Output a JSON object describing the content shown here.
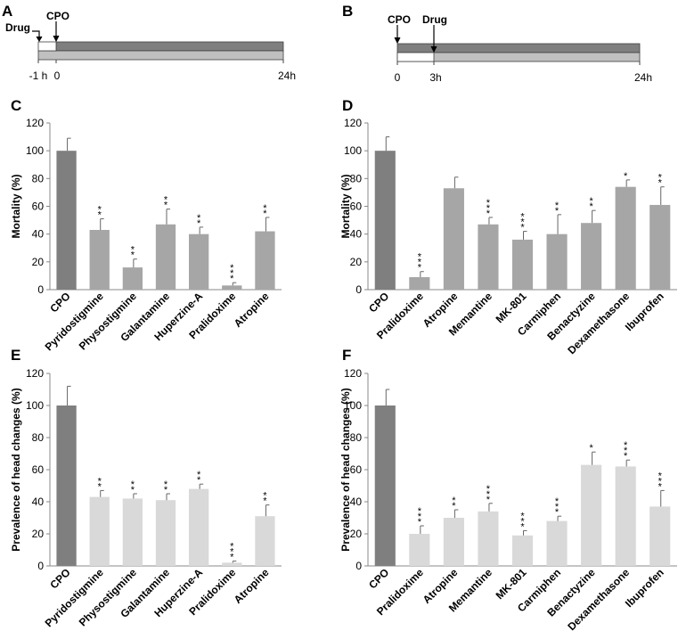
{
  "colors": {
    "cpo_bar": "#7f7f7f",
    "mortality_bar": "#a6a6a6",
    "head_bar": "#d9d9d9",
    "axis": "#888888",
    "text": "#000000"
  },
  "timelines": [
    {
      "panel": "A",
      "labels": [
        "Drug",
        "CPO"
      ],
      "ticks": [
        "-1 h",
        "0",
        "24h"
      ]
    },
    {
      "panel": "B",
      "labels": [
        "CPO",
        "Drug"
      ],
      "ticks": [
        "0",
        "3h",
        "24h"
      ]
    }
  ],
  "chart_data": [
    {
      "panel": "C",
      "type": "bar",
      "ylabel": "Mortality (%)",
      "ylim": [
        0,
        120
      ],
      "yticks": [
        "0",
        "20",
        "40",
        "60",
        "80",
        "100",
        "120"
      ],
      "categories": [
        "CPO",
        "Pyridostigmine",
        "Physostigmine",
        "Galantamine",
        "Huperzine-A",
        "Pralidoxime",
        "Atropine"
      ],
      "values": [
        100,
        43,
        16,
        47,
        40,
        3,
        42
      ],
      "errors": [
        9,
        8,
        6,
        11,
        5,
        2,
        10
      ],
      "significance": [
        "",
        "**",
        "**",
        "**",
        "**",
        "***",
        "**"
      ]
    },
    {
      "panel": "D",
      "type": "bar",
      "ylabel": "Mortality (%)",
      "ylim": [
        0,
        120
      ],
      "yticks": [
        "0",
        "20",
        "40",
        "60",
        "80",
        "100",
        "120"
      ],
      "categories": [
        "CPO",
        "Pralidoxime",
        "Atropine",
        "Memantine",
        "MK-801",
        "Carmiphen",
        "Benactyzine",
        "Dexamethasone",
        "Ibuprofen"
      ],
      "values": [
        100,
        9,
        73,
        47,
        36,
        40,
        48,
        74,
        61
      ],
      "errors": [
        10,
        4,
        8,
        5,
        6,
        14,
        9,
        5,
        13
      ],
      "significance": [
        "",
        "***",
        "",
        "***",
        "***",
        "**",
        "**",
        "*",
        "**"
      ]
    },
    {
      "panel": "E",
      "type": "bar",
      "ylabel": "Prevalence of head changes (%)",
      "ylim": [
        0,
        120
      ],
      "yticks": [
        "0",
        "20",
        "40",
        "60",
        "80",
        "100",
        "120"
      ],
      "categories": [
        "CPO",
        "Pyridostigmine",
        "Physostigmine",
        "Galantamine",
        "Huperzine-A",
        "Pralidoxime",
        "Atropine"
      ],
      "values": [
        100,
        43,
        42,
        41,
        48,
        2,
        31
      ],
      "errors": [
        12,
        4,
        3,
        4,
        3,
        1,
        7
      ],
      "significance": [
        "",
        "**",
        "**",
        "**",
        "**",
        "***",
        "**"
      ]
    },
    {
      "panel": "F",
      "type": "bar",
      "ylabel": "Prevalence of head changes (%)",
      "ylim": [
        0,
        120
      ],
      "yticks": [
        "0",
        "20",
        "40",
        "60",
        "80",
        "100",
        "120"
      ],
      "categories": [
        "CPO",
        "Pralidoxime",
        "Atropine",
        "Memantine",
        "MK-801",
        "Carmiphen",
        "Benactyzine",
        "Dexamethasone",
        "Ibuprofen"
      ],
      "values": [
        100,
        20,
        30,
        34,
        19,
        28,
        63,
        62,
        37
      ],
      "errors": [
        10,
        5,
        5,
        5,
        3,
        3,
        8,
        4,
        10
      ],
      "significance": [
        "",
        "***",
        "**",
        "***",
        "***",
        "***",
        "*",
        "***",
        "***"
      ]
    }
  ]
}
